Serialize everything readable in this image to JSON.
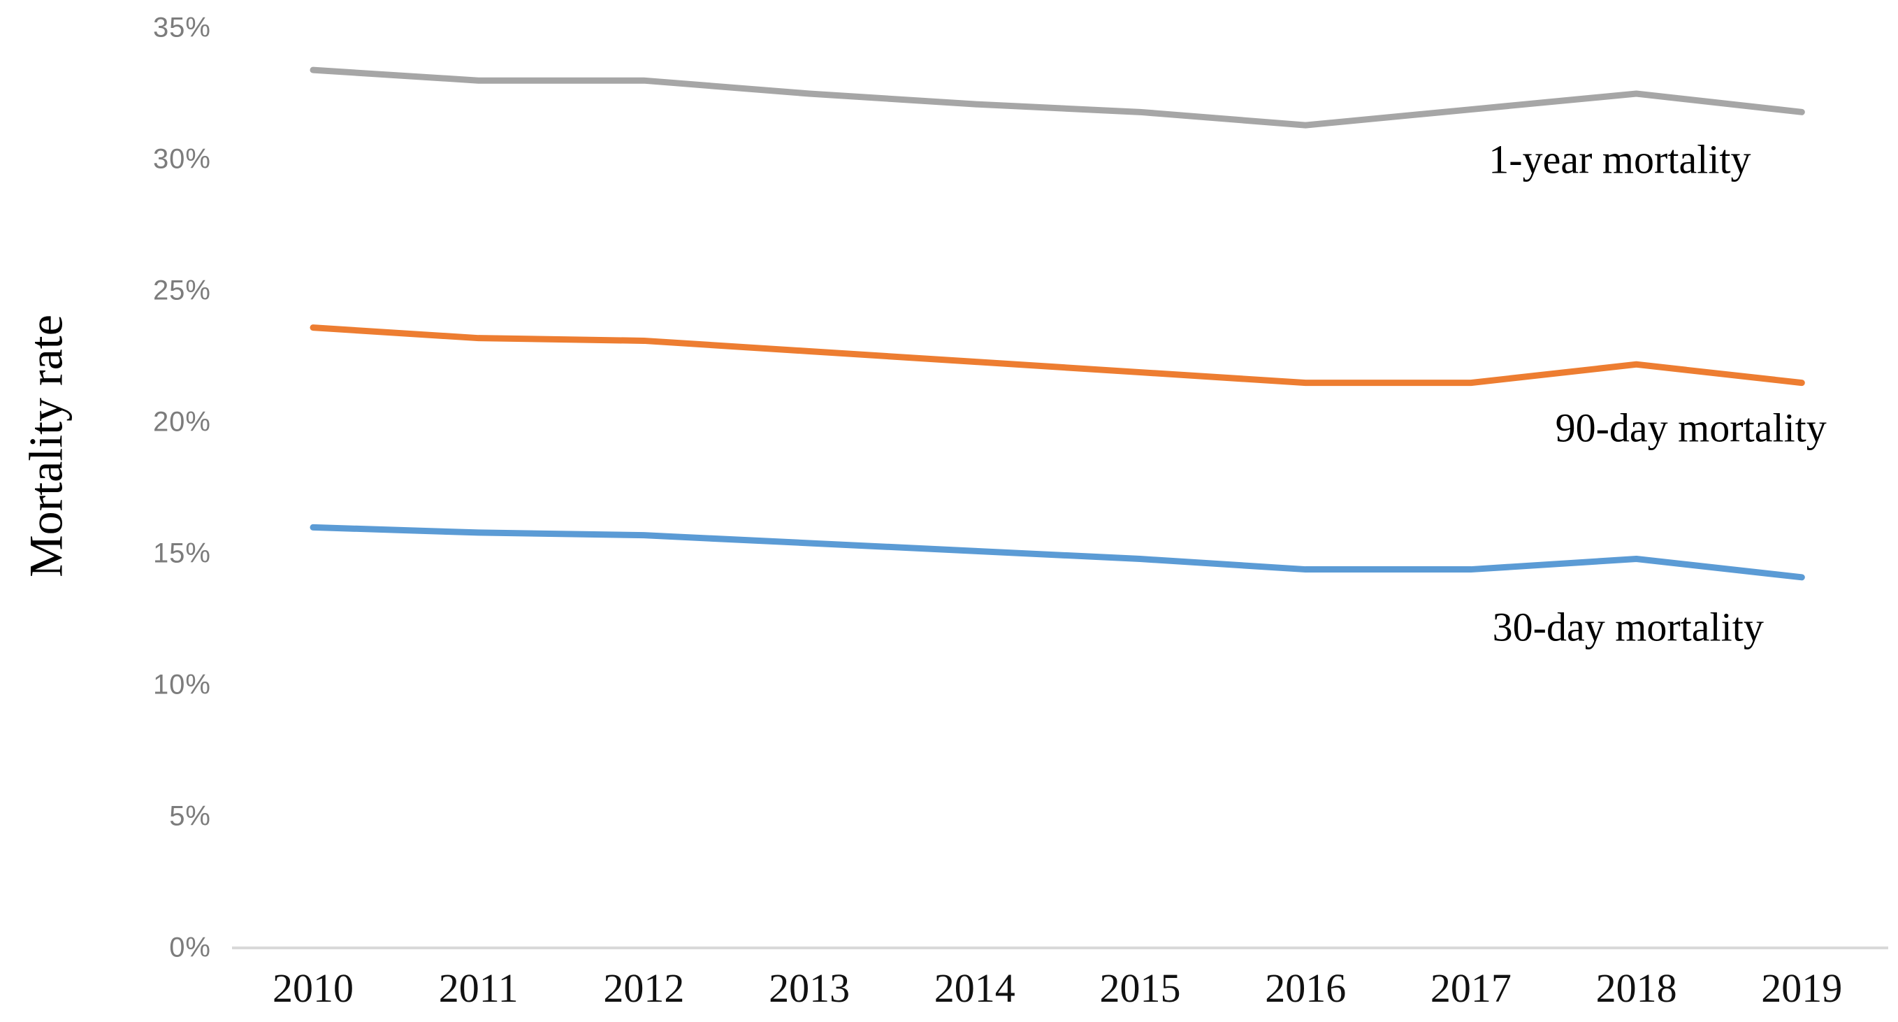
{
  "chart_data": {
    "type": "line",
    "title": "",
    "xlabel": "",
    "ylabel": "Mortality rate",
    "x_categories": [
      "2010",
      "2011",
      "2012",
      "2013",
      "2014",
      "2015",
      "2016",
      "2017",
      "2018",
      "2019"
    ],
    "y_ticks": [
      {
        "label": "35%",
        "value": 35
      },
      {
        "label": "30%",
        "value": 30
      },
      {
        "label": "25%",
        "value": 25
      },
      {
        "label": "20%",
        "value": 20
      },
      {
        "label": "15%",
        "value": 15
      },
      {
        "label": "10%",
        "value": 10
      },
      {
        "label": "5%",
        "value": 5
      },
      {
        "label": "0%",
        "value": 0
      }
    ],
    "ylim": [
      0,
      35
    ],
    "grid": "off",
    "legend": "inline-labels",
    "axis_color": "#D9D9D9",
    "tick_label_color": "#7C7C7C",
    "series": [
      {
        "name": "1-year mortality",
        "color": "#A6A6A6",
        "values": [
          33.4,
          33.0,
          33.0,
          32.5,
          32.1,
          31.8,
          31.3,
          31.9,
          32.5,
          31.8
        ],
        "label_anchor": {
          "x_index": 7.9,
          "y_value": 30.0
        }
      },
      {
        "name": "90-day mortality",
        "color": "#ED7D31",
        "values": [
          23.6,
          23.2,
          23.1,
          22.7,
          22.3,
          21.9,
          21.5,
          21.5,
          22.2,
          21.5
        ],
        "label_anchor": {
          "x_index": 8.33,
          "y_value": 19.8
        }
      },
      {
        "name": "30-day mortality",
        "color": "#5B9BD5",
        "values": [
          16.0,
          15.8,
          15.7,
          15.4,
          15.1,
          14.8,
          14.4,
          14.4,
          14.8,
          14.1
        ],
        "label_anchor": {
          "x_index": 7.95,
          "y_value": 12.2
        }
      }
    ]
  }
}
